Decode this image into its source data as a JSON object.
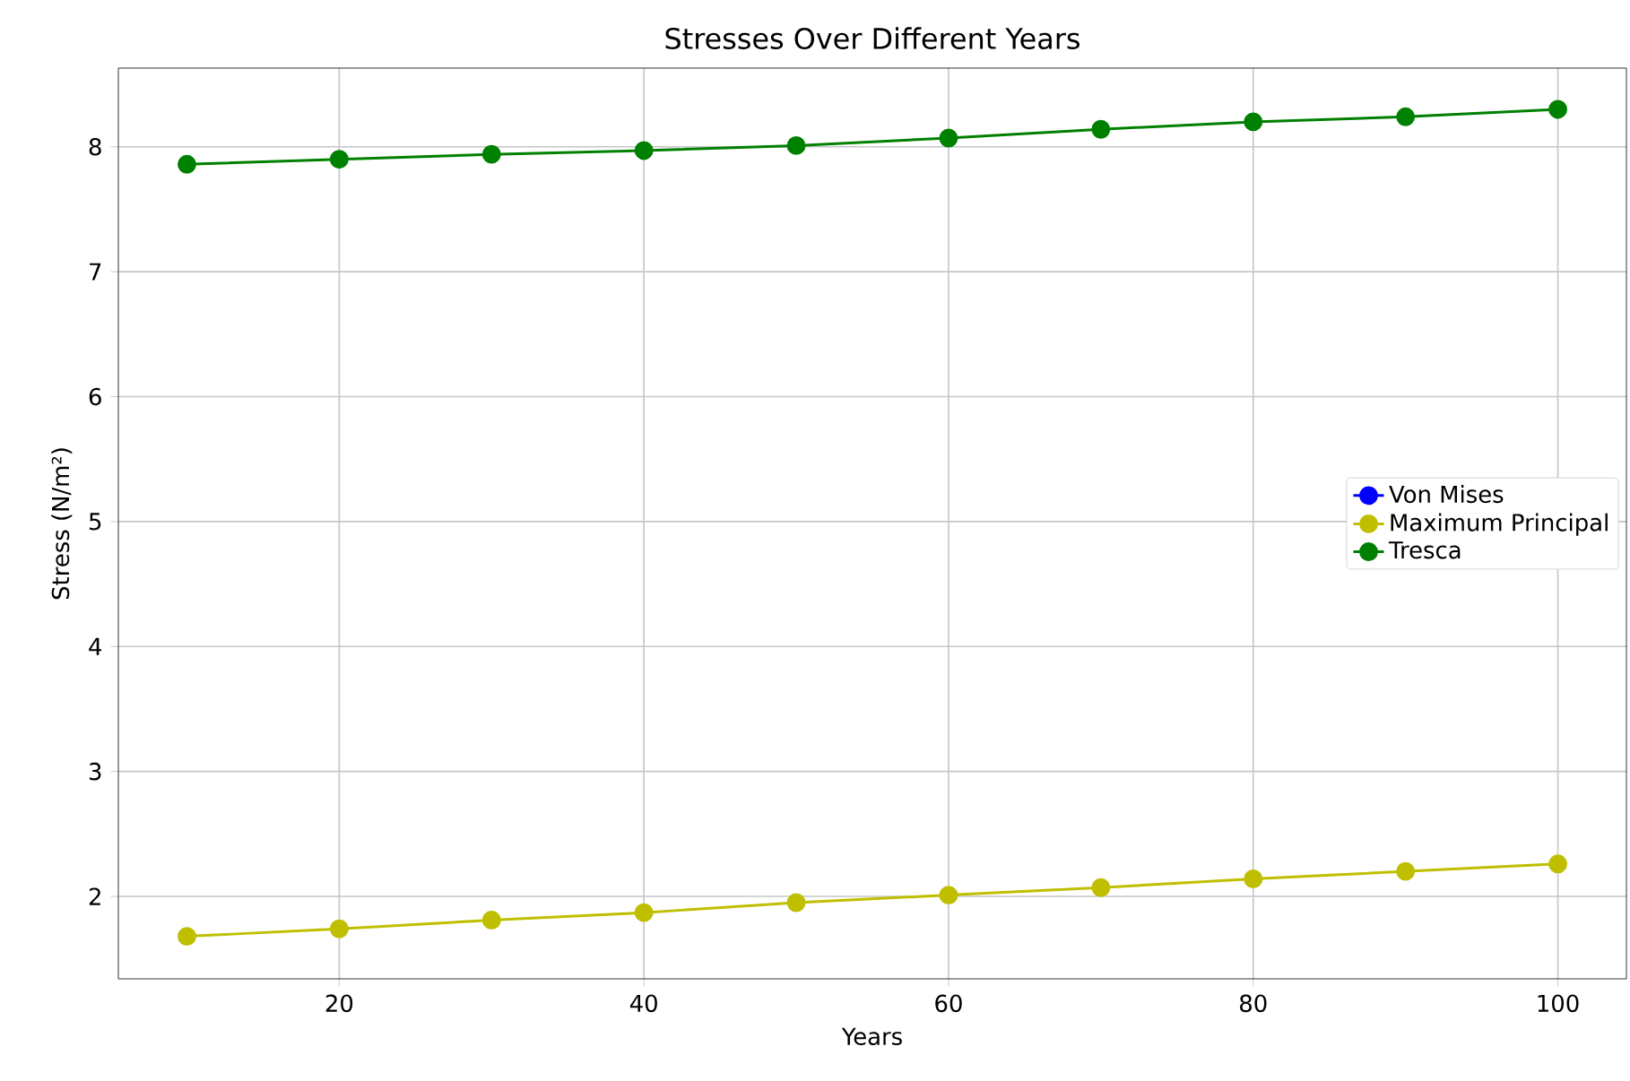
{
  "chart_data": {
    "type": "line",
    "title": "Stresses Over Different Years",
    "xlabel": "Years",
    "ylabel": "Stress (N/m²)",
    "x": [
      10,
      20,
      30,
      40,
      50,
      60,
      70,
      80,
      90,
      100
    ],
    "series": [
      {
        "name": "Von Mises",
        "color": "#0000ff",
        "values": [
          null,
          null,
          null,
          null,
          null,
          null,
          null,
          null,
          null,
          null
        ]
      },
      {
        "name": "Maximum Principal",
        "color": "#bfbf00",
        "values": [
          1.68,
          1.74,
          1.81,
          1.87,
          1.95,
          2.01,
          2.07,
          2.14,
          2.2,
          2.26
        ]
      },
      {
        "name": "Tresca",
        "color": "#008000",
        "values": [
          7.86,
          7.9,
          7.94,
          7.97,
          8.01,
          8.07,
          8.14,
          8.2,
          8.24,
          8.3
        ]
      }
    ],
    "xlim": [
      5.5,
      104.5
    ],
    "ylim": [
      1.34,
      8.63
    ],
    "xticks": [
      20,
      40,
      60,
      80,
      100
    ],
    "yticks": [
      2,
      3,
      4,
      5,
      6,
      7,
      8
    ],
    "grid": true,
    "legend": "right",
    "marker": "circle",
    "line_style": "solid"
  }
}
